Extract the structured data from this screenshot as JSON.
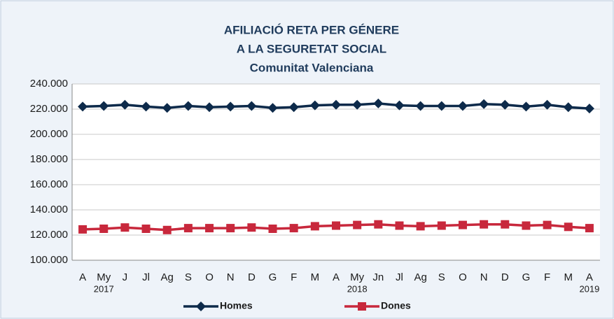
{
  "chart_data": {
    "type": "line",
    "title": [
      "AFILIACIÓ RETA PER GÉNERE",
      "A LA SEGURETAT SOCIAL",
      "Comunitat Valenciana"
    ],
    "categories": [
      "A",
      "My",
      "J",
      "Jl",
      "Ag",
      "S",
      "O",
      "N",
      "D",
      "G",
      "F",
      "M",
      "A",
      "My",
      "Jn",
      "Jl",
      "Ag",
      "S",
      "O",
      "N",
      "D",
      "G",
      "F",
      "M",
      "A"
    ],
    "years": [
      null,
      "2017",
      null,
      null,
      null,
      null,
      null,
      null,
      null,
      null,
      null,
      null,
      null,
      "2018",
      null,
      null,
      null,
      null,
      null,
      null,
      null,
      null,
      null,
      null,
      "2019"
    ],
    "series": [
      {
        "name": "Homes",
        "color": "#0d2a4a",
        "marker": "diamond",
        "values": [
          222000,
          222500,
          223500,
          222000,
          221000,
          222500,
          221500,
          222000,
          222500,
          221000,
          221500,
          223000,
          223500,
          223500,
          224500,
          223000,
          222500,
          222500,
          222500,
          224000,
          223500,
          222000,
          223500,
          221500,
          220500
        ]
      },
      {
        "name": "Dones",
        "color": "#c8283c",
        "marker": "square",
        "values": [
          124500,
          125000,
          126000,
          125000,
          124000,
          125500,
          125500,
          125500,
          126000,
          125000,
          125500,
          127000,
          127500,
          128000,
          128500,
          127500,
          127000,
          127500,
          128000,
          128500,
          128500,
          127500,
          128000,
          126500,
          125500
        ]
      }
    ],
    "ylim": [
      100000,
      240000
    ],
    "yticks": [
      {
        "value": 100000,
        "label": "100.000"
      },
      {
        "value": 120000,
        "label": "120.000"
      },
      {
        "value": 140000,
        "label": "140.000"
      },
      {
        "value": 160000,
        "label": "160.000"
      },
      {
        "value": 180000,
        "label": "180.000"
      },
      {
        "value": 200000,
        "label": "200.000"
      },
      {
        "value": 220000,
        "label": "220.000"
      },
      {
        "value": 240000,
        "label": "240.000"
      }
    ],
    "grid": true,
    "legend": "bottom"
  }
}
